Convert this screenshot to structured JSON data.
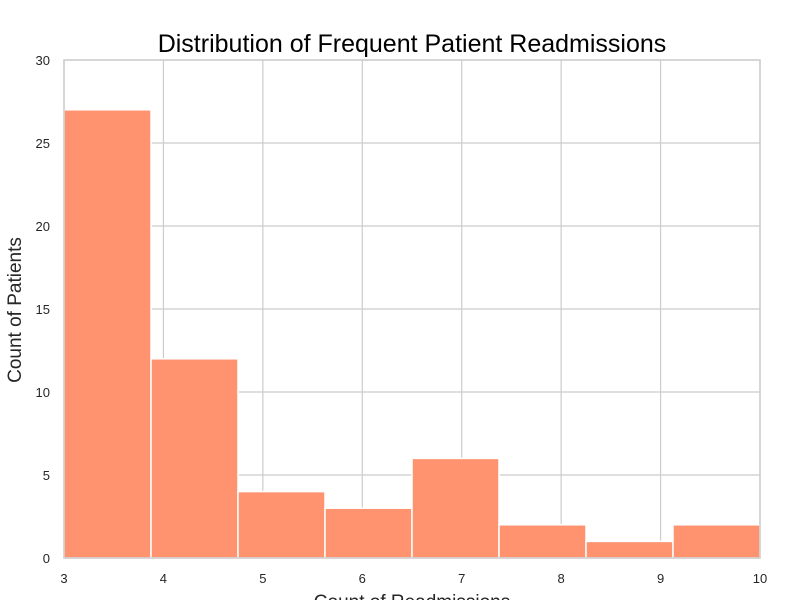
{
  "chart_data": {
    "type": "bar",
    "title": "Distribution of Frequent Patient Readmissions",
    "xlabel": "Count of Readmissions",
    "ylabel": "Count of Patients",
    "xlim": [
      3,
      10
    ],
    "ylim": [
      0,
      30
    ],
    "xticks": [
      "3",
      "4",
      "5",
      "6",
      "7",
      "8",
      "9",
      "10"
    ],
    "yticks": [
      "0",
      "5",
      "10",
      "15",
      "20",
      "25",
      "30"
    ],
    "bin_edges": [
      3,
      3.875,
      4.75,
      5.625,
      6.5,
      7.375,
      8.25,
      9.125,
      10
    ],
    "values": [
      27,
      12,
      4,
      3,
      6,
      2,
      1,
      2
    ],
    "grid": true,
    "colors": {
      "bar": "#ff9370",
      "bar_edge": "#ffffff",
      "grid": "#cccccc",
      "spine": "#cccccc"
    }
  }
}
